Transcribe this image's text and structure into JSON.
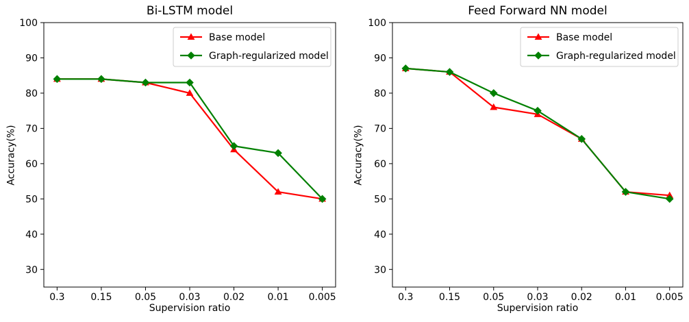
{
  "figure": {
    "background": "#ffffff",
    "axis_color": "#000000",
    "text_color": "#000000",
    "legend_border_color": "#cccccc",
    "legend_background": "#ffffff"
  },
  "chart_data": [
    {
      "type": "line",
      "title": "Bi-LSTM model",
      "xlabel": "Supervision ratio",
      "ylabel": "Accuracy(%)",
      "categories": [
        "0.3",
        "0.15",
        "0.05",
        "0.03",
        "0.02",
        "0.01",
        "0.005"
      ],
      "series": [
        {
          "name": "Base model",
          "color": "#ff0000",
          "marker": "triangle-up",
          "values": [
            84,
            84,
            83,
            80,
            64,
            52,
            50
          ]
        },
        {
          "name": "Graph-regularized model",
          "color": "#008000",
          "marker": "diamond",
          "values": [
            84,
            84,
            83,
            83,
            65,
            63,
            50
          ]
        }
      ],
      "ylim": [
        25,
        100
      ],
      "yticks": [
        30,
        40,
        50,
        60,
        70,
        80,
        90,
        100
      ],
      "legend_position": "upper right",
      "grid": false
    },
    {
      "type": "line",
      "title": "Feed Forward NN model",
      "xlabel": "Supervision ratio",
      "ylabel": "Accuracy(%)",
      "categories": [
        "0.3",
        "0.15",
        "0.05",
        "0.03",
        "0.02",
        "0.01",
        "0.005"
      ],
      "series": [
        {
          "name": "Base model",
          "color": "#ff0000",
          "marker": "triangle-up",
          "values": [
            87,
            86,
            76,
            74,
            67,
            52,
            51
          ]
        },
        {
          "name": "Graph-regularized model",
          "color": "#008000",
          "marker": "diamond",
          "values": [
            87,
            86,
            80,
            75,
            67,
            52,
            50
          ]
        }
      ],
      "ylim": [
        25,
        100
      ],
      "yticks": [
        30,
        40,
        50,
        60,
        70,
        80,
        90,
        100
      ],
      "legend_position": "upper right",
      "grid": false
    }
  ]
}
